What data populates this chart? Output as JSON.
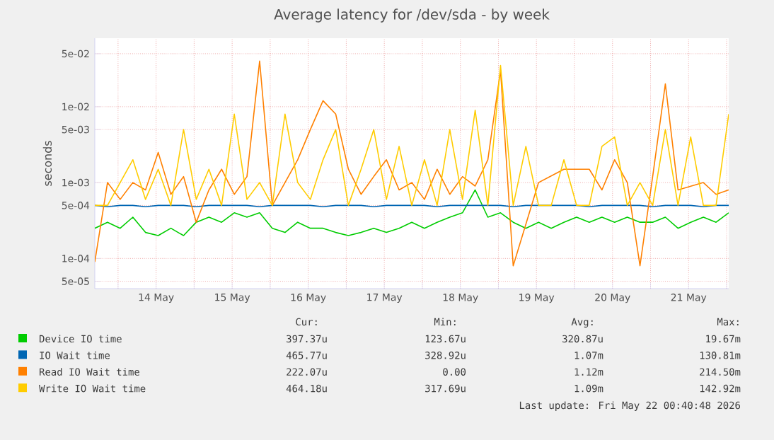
{
  "chart_data": {
    "type": "line",
    "title": "Average latency for /dev/sda - by week",
    "ylabel": "seconds",
    "x": [
      "2026-05-13T16:40",
      "2026-05-13T20:40",
      "2026-05-14T00:40",
      "2026-05-14T04:40",
      "2026-05-14T08:40",
      "2026-05-14T12:40",
      "2026-05-14T16:40",
      "2026-05-14T20:40",
      "2026-05-15T00:40",
      "2026-05-15T04:40",
      "2026-05-15T08:40",
      "2026-05-15T12:40",
      "2026-05-15T16:40",
      "2026-05-15T20:40",
      "2026-05-16T00:40",
      "2026-05-16T04:40",
      "2026-05-16T08:40",
      "2026-05-16T12:40",
      "2026-05-16T16:40",
      "2026-05-16T20:40",
      "2026-05-17T00:40",
      "2026-05-17T04:40",
      "2026-05-17T08:40",
      "2026-05-17T12:40",
      "2026-05-17T16:40",
      "2026-05-17T20:40",
      "2026-05-18T00:40",
      "2026-05-18T04:40",
      "2026-05-18T08:40",
      "2026-05-18T12:40",
      "2026-05-18T16:40",
      "2026-05-18T20:40",
      "2026-05-19T00:40",
      "2026-05-19T04:40",
      "2026-05-19T08:40",
      "2026-05-19T12:40",
      "2026-05-19T16:40",
      "2026-05-19T20:40",
      "2026-05-20T00:40",
      "2026-05-20T04:40",
      "2026-05-20T08:40",
      "2026-05-20T12:40",
      "2026-05-20T16:40",
      "2026-05-20T20:40",
      "2026-05-21T00:40",
      "2026-05-21T04:40",
      "2026-05-21T08:40",
      "2026-05-21T12:40",
      "2026-05-21T16:40",
      "2026-05-21T20:40",
      "2026-05-22T00:40"
    ],
    "series": [
      {
        "name": "Device IO time",
        "color": "#00cc00",
        "values": [
          0.00025,
          0.0003,
          0.00025,
          0.00035,
          0.00022,
          0.0002,
          0.00025,
          0.0002,
          0.0003,
          0.00035,
          0.0003,
          0.0004,
          0.00035,
          0.0004,
          0.00025,
          0.00022,
          0.0003,
          0.00025,
          0.00025,
          0.00022,
          0.0002,
          0.00022,
          0.00025,
          0.00022,
          0.00025,
          0.0003,
          0.00025,
          0.0003,
          0.00035,
          0.0004,
          0.0008,
          0.00035,
          0.0004,
          0.0003,
          0.00025,
          0.0003,
          0.00025,
          0.0003,
          0.00035,
          0.0003,
          0.00035,
          0.0003,
          0.00035,
          0.0003,
          0.0003,
          0.00035,
          0.00025,
          0.0003,
          0.00035,
          0.0003,
          0.0004
        ]
      },
      {
        "name": "IO Wait time",
        "color": "#0066b3",
        "values": [
          0.0005,
          0.00048,
          0.0005,
          0.0005,
          0.00048,
          0.0005,
          0.0005,
          0.0005,
          0.00048,
          0.0005,
          0.0005,
          0.0005,
          0.0005,
          0.00048,
          0.0005,
          0.0005,
          0.0005,
          0.0005,
          0.00048,
          0.0005,
          0.0005,
          0.0005,
          0.00048,
          0.0005,
          0.0005,
          0.0005,
          0.0005,
          0.00048,
          0.0005,
          0.0005,
          0.0005,
          0.0005,
          0.0005,
          0.00048,
          0.0005,
          0.0005,
          0.0005,
          0.0005,
          0.0005,
          0.00048,
          0.0005,
          0.0005,
          0.0005,
          0.0005,
          0.00048,
          0.0005,
          0.0005,
          0.0005,
          0.00048,
          0.0005,
          0.0005
        ]
      },
      {
        "name": "Read IO Wait time",
        "color": "#ff8000",
        "values": [
          9e-05,
          0.001,
          0.0006,
          0.001,
          0.0008,
          0.0025,
          0.0007,
          0.0012,
          0.0003,
          0.0008,
          0.0015,
          0.0007,
          0.0012,
          0.04,
          0.0005,
          0.001,
          0.002,
          0.005,
          0.012,
          0.008,
          0.0015,
          0.0007,
          0.0012,
          0.002,
          0.0008,
          0.001,
          0.0006,
          0.0015,
          0.0007,
          0.0012,
          0.0009,
          0.002,
          0.03,
          8e-05,
          null,
          0.001,
          null,
          0.0015,
          null,
          0.0015,
          0.0008,
          0.002,
          0.001,
          8e-05,
          0.0012,
          0.02,
          0.0008,
          null,
          0.001,
          0.0007,
          0.0008
        ]
      },
      {
        "name": "Write IO Wait time",
        "color": "#ffcc00",
        "values": [
          0.0005,
          0.0005,
          0.001,
          0.002,
          0.0006,
          0.0015,
          0.0005,
          0.005,
          0.0006,
          0.0015,
          0.0005,
          0.008,
          0.0006,
          0.001,
          0.0005,
          0.008,
          0.001,
          0.0006,
          0.002,
          0.005,
          0.0005,
          0.0015,
          0.005,
          0.0006,
          0.003,
          0.0005,
          0.002,
          0.0005,
          0.005,
          0.0006,
          0.009,
          0.0005,
          0.035,
          0.0005,
          0.003,
          0.0005,
          0.0005,
          0.002,
          0.0005,
          0.0005,
          0.003,
          0.004,
          0.0005,
          0.001,
          0.0005,
          0.005,
          0.0005,
          0.004,
          0.0005,
          0.0005,
          0.008
        ]
      }
    ],
    "xlim": [
      "2026-05-13T16:40",
      "2026-05-22T00:40"
    ],
    "xticks": [
      {
        "value": "2026-05-14T00:00",
        "label": null
      },
      {
        "value": "2026-05-14T12:00",
        "label": "14 May"
      },
      {
        "value": "2026-05-15T00:00",
        "label": null
      },
      {
        "value": "2026-05-15T12:00",
        "label": "15 May"
      },
      {
        "value": "2026-05-16T00:00",
        "label": null
      },
      {
        "value": "2026-05-16T12:00",
        "label": "16 May"
      },
      {
        "value": "2026-05-17T00:00",
        "label": null
      },
      {
        "value": "2026-05-17T12:00",
        "label": "17 May"
      },
      {
        "value": "2026-05-18T00:00",
        "label": null
      },
      {
        "value": "2026-05-18T12:00",
        "label": "18 May"
      },
      {
        "value": "2026-05-19T00:00",
        "label": null
      },
      {
        "value": "2026-05-19T12:00",
        "label": "19 May"
      },
      {
        "value": "2026-05-20T00:00",
        "label": null
      },
      {
        "value": "2026-05-20T12:00",
        "label": "20 May"
      },
      {
        "value": "2026-05-21T00:00",
        "label": null
      },
      {
        "value": "2026-05-21T12:00",
        "label": "21 May"
      },
      {
        "value": "2026-05-22T00:00",
        "label": null
      }
    ],
    "ylim": [
      4e-05,
      0.08
    ],
    "log": "y",
    "yticks": [
      {
        "value": 5e-05,
        "label": "5e-05"
      },
      {
        "value": 0.0001,
        "label": "1e-04"
      },
      {
        "value": 0.0005,
        "label": "5e-04"
      },
      {
        "value": 0.001,
        "label": "1e-03"
      },
      {
        "value": 0.005,
        "label": "5e-03"
      },
      {
        "value": 0.01,
        "label": "1e-02"
      },
      {
        "value": 0.05,
        "label": "5e-02"
      }
    ],
    "grid": true,
    "legend": "bottom",
    "marker": "none",
    "line_style": "solid",
    "annotations": [
      "Cur:",
      "Min:",
      "Avg:",
      "Max:",
      "397.37u",
      "123.67u",
      "320.87u",
      "19.67m",
      "465.77u",
      "328.92u",
      "1.07m",
      "130.81m",
      "222.07u",
      "0.00",
      "1.12m",
      "214.50m",
      "464.18u",
      "317.69u",
      "1.09m",
      "142.92m",
      "Last update: Fri May 22 00:40:48 2026"
    ]
  }
}
